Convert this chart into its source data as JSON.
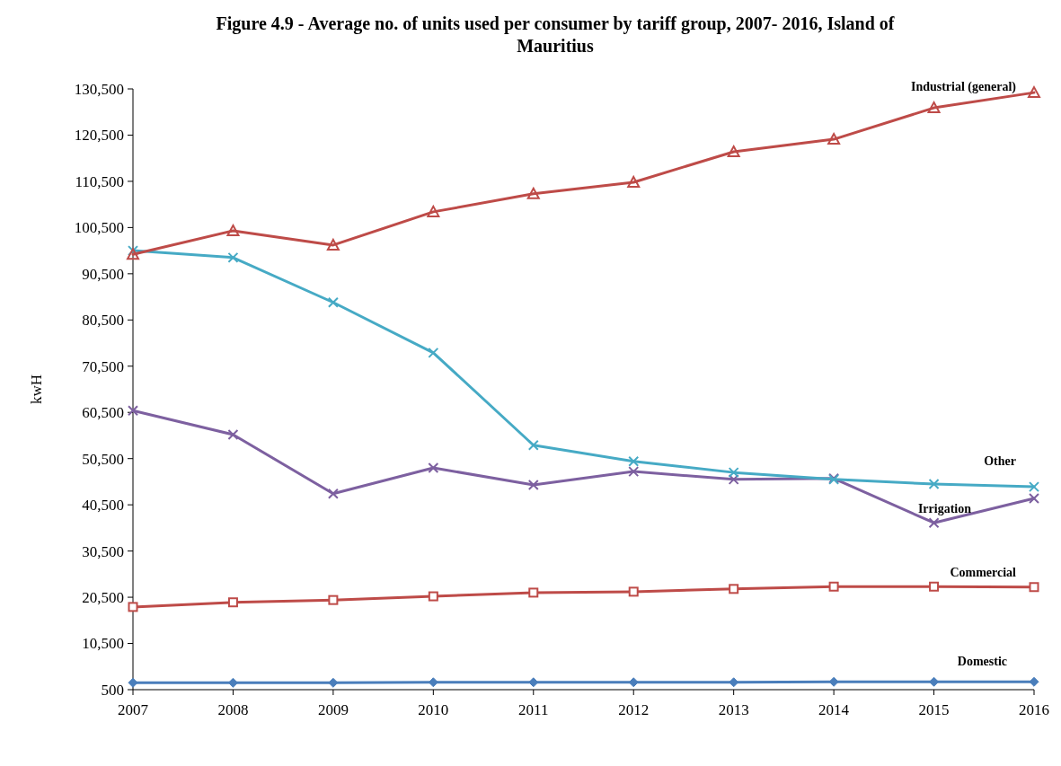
{
  "chart_data": {
    "type": "line",
    "title": "Figure 4.9 - Average no. of units used per consumer by tariff group, 2007- 2016, Island of Mauritius",
    "ylabel": "kwH",
    "categories": [
      "2007",
      "2008",
      "2009",
      "2010",
      "2011",
      "2012",
      "2013",
      "2014",
      "2015",
      "2016"
    ],
    "series": [
      {
        "name": "Domestic",
        "color": "#4a7ebb",
        "marker": "diamond",
        "values": [
          2000,
          2000,
          2000,
          2100,
          2100,
          2100,
          2100,
          2200,
          2200,
          2200
        ]
      },
      {
        "name": "Commercial",
        "color": "#be4b48",
        "marker": "square",
        "values": [
          18400,
          19400,
          19900,
          20700,
          21500,
          21700,
          22300,
          22800,
          22800,
          22700
        ]
      },
      {
        "name": "Irrigation",
        "color": "#7d60a0",
        "marker": "cross",
        "values": [
          60900,
          55700,
          42900,
          48500,
          44800,
          47700,
          46000,
          46200,
          36600,
          41900
        ]
      },
      {
        "name": "Other",
        "color": "#46aac5",
        "marker": "cross",
        "values": [
          95500,
          94000,
          84300,
          73400,
          53400,
          49900,
          47500,
          46000,
          45000,
          44400
        ]
      },
      {
        "name": "Industrial (general)",
        "color": "#be4b48",
        "marker": "triangle",
        "values": [
          94700,
          99800,
          96700,
          103900,
          107800,
          110300,
          116900,
          119600,
          126400,
          129700
        ]
      }
    ],
    "ylim": [
      500,
      130500
    ],
    "yticks": [
      500,
      {
        "value": 10500,
        "label": "10,500"
      },
      {
        "value": 20500,
        "label": "20,500"
      },
      {
        "value": 30500,
        "label": "30,500"
      },
      {
        "value": 40500,
        "label": "40,500"
      },
      {
        "value": 50500,
        "label": "50,500"
      },
      {
        "value": 60500,
        "label": "60,500"
      },
      {
        "value": 70500,
        "label": "70,500"
      },
      {
        "value": 80500,
        "label": "80,500"
      },
      {
        "value": 90500,
        "label": "90,500"
      },
      {
        "value": 100500,
        "label": "100,500"
      },
      {
        "value": 110500,
        "label": "110,500"
      },
      {
        "value": 120500,
        "label": "120,500"
      },
      {
        "value": 130500,
        "label": "130,500"
      }
    ],
    "line_style": "solid"
  }
}
